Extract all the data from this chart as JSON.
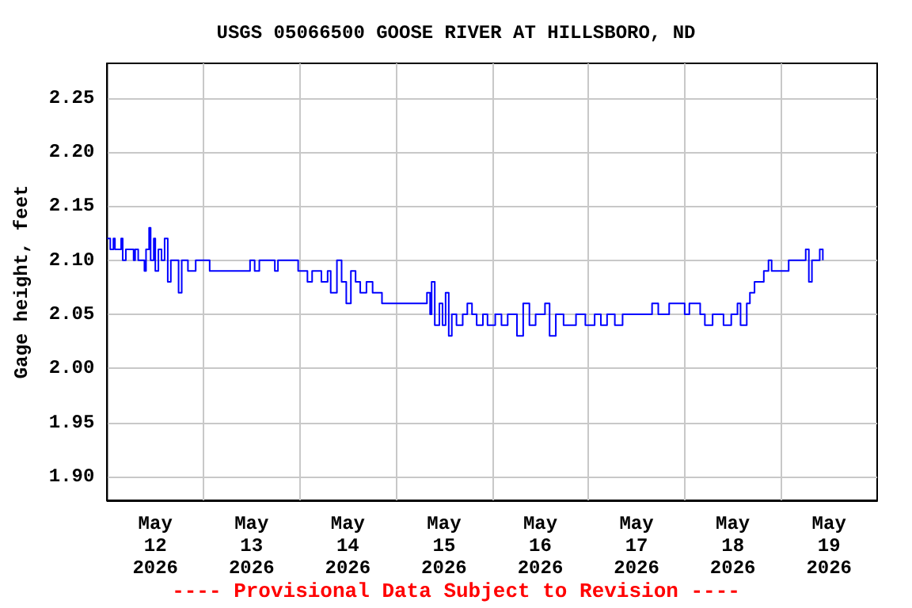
{
  "chart_data": {
    "type": "step",
    "title": "USGS 05066500 GOOSE RIVER AT HILLSBORO, ND",
    "ylabel": "Gage height, feet",
    "annotations": [
      "---- Provisional Data Subject to Revision ----"
    ],
    "xlim": [
      "2026-05-12T00:00",
      "2026-05-20T00:00"
    ],
    "xticks": [
      {
        "value": "2026-05-12T12:00",
        "label": "May\n12\n2026"
      },
      {
        "value": "2026-05-13T00:00",
        "label": null
      },
      {
        "value": "2026-05-13T12:00",
        "label": "May\n13\n2026"
      },
      {
        "value": "2026-05-14T00:00",
        "label": null
      },
      {
        "value": "2026-05-14T12:00",
        "label": "May\n14\n2026"
      },
      {
        "value": "2026-05-15T00:00",
        "label": null
      },
      {
        "value": "2026-05-15T12:00",
        "label": "May\n15\n2026"
      },
      {
        "value": "2026-05-16T00:00",
        "label": null
      },
      {
        "value": "2026-05-16T12:00",
        "label": "May\n16\n2026"
      },
      {
        "value": "2026-05-17T00:00",
        "label": null
      },
      {
        "value": "2026-05-17T12:00",
        "label": "May\n17\n2026"
      },
      {
        "value": "2026-05-18T00:00",
        "label": null
      },
      {
        "value": "2026-05-18T12:00",
        "label": "May\n18\n2026"
      },
      {
        "value": "2026-05-19T00:00",
        "label": null
      },
      {
        "value": "2026-05-19T12:00",
        "label": "May\n19\n2026"
      }
    ],
    "ylim": [
      1.878,
      2.282
    ],
    "yticks": [
      {
        "value": 1.9,
        "label": "1.90"
      },
      {
        "value": 1.95,
        "label": "1.95"
      },
      {
        "value": 2.0,
        "label": "2.00"
      },
      {
        "value": 2.05,
        "label": "2.05"
      },
      {
        "value": 2.1,
        "label": "2.10"
      },
      {
        "value": 2.15,
        "label": "2.15"
      },
      {
        "value": 2.2,
        "label": "2.20"
      },
      {
        "value": 2.25,
        "label": "2.25"
      }
    ],
    "grid": true,
    "marker": "none",
    "series": [
      {
        "color": "#0000ff",
        "x": [
          "2026-05-12T00:00",
          "2026-05-12T00:46",
          "2026-05-12T01:33",
          "2026-05-12T01:56",
          "2026-05-12T03:06",
          "2026-05-12T03:29",
          "2026-05-12T03:52",
          "2026-05-12T04:39",
          "2026-05-12T05:48",
          "2026-05-12T06:35",
          "2026-05-12T06:58",
          "2026-05-12T07:44",
          "2026-05-12T09:17",
          "2026-05-12T09:41",
          "2026-05-12T10:27",
          "2026-05-12T10:50",
          "2026-05-12T11:37",
          "2026-05-12T12:00",
          "2026-05-12T12:46",
          "2026-05-12T13:33",
          "2026-05-12T14:19",
          "2026-05-12T15:06",
          "2026-05-12T15:52",
          "2026-05-12T17:48",
          "2026-05-12T18:35",
          "2026-05-12T20:08",
          "2026-05-12T22:04",
          "2026-05-13T00:46",
          "2026-05-13T01:33",
          "2026-05-13T07:44",
          "2026-05-13T11:14",
          "2026-05-13T11:37",
          "2026-05-13T12:46",
          "2026-05-13T13:56",
          "2026-05-13T17:25",
          "2026-05-13T17:48",
          "2026-05-13T18:35",
          "2026-05-13T23:14",
          "2026-05-13T23:37",
          "2026-05-14T01:10",
          "2026-05-14T01:56",
          "2026-05-14T03:06",
          "2026-05-14T05:25",
          "2026-05-14T06:58",
          "2026-05-14T07:44",
          "2026-05-14T09:17",
          "2026-05-14T10:27",
          "2026-05-14T11:37",
          "2026-05-14T12:46",
          "2026-05-14T13:56",
          "2026-05-14T15:06",
          "2026-05-14T16:39",
          "2026-05-14T18:11",
          "2026-05-14T19:44",
          "2026-05-14T20:31",
          "2026-05-15T00:46",
          "2026-05-15T07:21",
          "2026-05-15T07:44",
          "2026-05-15T08:31",
          "2026-05-15T08:54",
          "2026-05-15T09:41",
          "2026-05-15T10:50",
          "2026-05-15T11:37",
          "2026-05-15T12:23",
          "2026-05-15T13:10",
          "2026-05-15T13:56",
          "2026-05-15T15:06",
          "2026-05-15T16:39",
          "2026-05-15T17:48",
          "2026-05-15T18:58",
          "2026-05-15T20:08",
          "2026-05-15T21:41",
          "2026-05-15T22:50",
          "2026-05-16T00:46",
          "2026-05-16T02:19",
          "2026-05-16T03:52",
          "2026-05-16T06:11",
          "2026-05-16T07:44",
          "2026-05-16T09:17",
          "2026-05-16T10:50",
          "2026-05-16T13:10",
          "2026-05-16T14:19",
          "2026-05-16T15:52",
          "2026-05-16T17:48",
          "2026-05-16T20:54",
          "2026-05-16T23:14",
          "2026-05-17T01:33",
          "2026-05-17T03:06",
          "2026-05-17T04:39",
          "2026-05-17T06:35",
          "2026-05-17T08:31",
          "2026-05-17T12:23",
          "2026-05-17T15:52",
          "2026-05-17T17:25",
          "2026-05-17T20:08",
          "2026-05-18T00:00",
          "2026-05-18T01:10",
          "2026-05-18T03:52",
          "2026-05-18T05:02",
          "2026-05-18T06:58",
          "2026-05-18T09:41",
          "2026-05-18T11:37",
          "2026-05-18T13:10",
          "2026-05-18T13:56",
          "2026-05-18T15:29",
          "2026-05-18T16:16",
          "2026-05-18T17:25",
          "2026-05-18T18:35",
          "2026-05-18T19:44",
          "2026-05-18T20:54",
          "2026-05-18T21:41",
          "2026-05-18T23:14",
          "2026-05-19T00:46",
          "2026-05-19T01:56",
          "2026-05-19T05:25",
          "2026-05-19T06:11",
          "2026-05-19T06:58",
          "2026-05-19T07:44",
          "2026-05-19T08:31",
          "2026-05-19T09:41",
          "2026-05-19T10:27"
        ],
        "values": [
          2.12,
          2.11,
          2.12,
          2.11,
          2.11,
          2.12,
          2.1,
          2.11,
          2.11,
          2.1,
          2.11,
          2.1,
          2.09,
          2.11,
          2.13,
          2.1,
          2.12,
          2.09,
          2.11,
          2.1,
          2.12,
          2.08,
          2.1,
          2.07,
          2.1,
          2.09,
          2.1,
          2.1,
          2.09,
          2.09,
          2.09,
          2.1,
          2.09,
          2.1,
          2.1,
          2.09,
          2.1,
          2.1,
          2.09,
          2.09,
          2.08,
          2.09,
          2.08,
          2.09,
          2.07,
          2.1,
          2.08,
          2.06,
          2.09,
          2.08,
          2.07,
          2.08,
          2.07,
          2.07,
          2.06,
          2.06,
          2.06,
          2.07,
          2.05,
          2.08,
          2.04,
          2.06,
          2.04,
          2.07,
          2.03,
          2.05,
          2.04,
          2.05,
          2.06,
          2.05,
          2.04,
          2.05,
          2.04,
          2.05,
          2.04,
          2.05,
          2.03,
          2.06,
          2.04,
          2.05,
          2.06,
          2.03,
          2.05,
          2.04,
          2.05,
          2.04,
          2.05,
          2.04,
          2.05,
          2.04,
          2.05,
          2.05,
          2.06,
          2.05,
          2.06,
          2.05,
          2.06,
          2.05,
          2.04,
          2.05,
          2.04,
          2.05,
          2.06,
          2.04,
          2.06,
          2.07,
          2.08,
          2.08,
          2.09,
          2.1,
          2.09,
          2.09,
          2.09,
          2.1,
          2.1,
          2.11,
          2.08,
          2.1,
          2.1,
          2.11,
          2.1
        ]
      }
    ]
  }
}
